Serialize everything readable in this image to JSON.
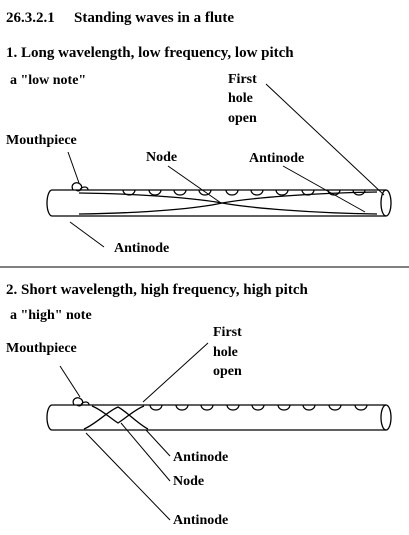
{
  "header": {
    "section_number": "26.3.2.1",
    "section_title": "Standing waves in a flute"
  },
  "panel_low": {
    "heading": "1. Long wavelength, low frequency, low pitch",
    "subheading": "a \"low note\"",
    "labels": {
      "first_hole_line1": "First",
      "first_hole_line2": "hole",
      "first_hole_line3": "open",
      "mouthpiece": "Mouthpiece",
      "node": "Node",
      "antinode_right": "Antinode",
      "antinode_bottom": "Antinode"
    }
  },
  "panel_high": {
    "heading": "2. Short wavelength, high frequency, high pitch",
    "subheading": "a \"high\" note",
    "labels": {
      "first_hole_line1": "First",
      "first_hole_line2": "hole",
      "first_hole_line3": "open",
      "mouthpiece": "Mouthpiece",
      "antinode_upper": "Antinode",
      "node": "Node",
      "antinode_lower": "Antinode"
    }
  },
  "colors": {
    "ink": "#000000",
    "background": "#ffffff"
  }
}
